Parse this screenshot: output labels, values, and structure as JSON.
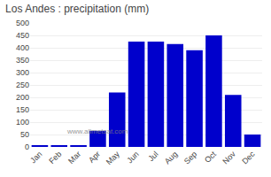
{
  "chart_data": {
    "type": "bar",
    "title": "Los Andes : precipitation (mm)",
    "categories": [
      "Jan",
      "Feb",
      "Mar",
      "Apr",
      "May",
      "Jun",
      "Jul",
      "Aug",
      "Sep",
      "Oct",
      "Nov",
      "Dec"
    ],
    "values": [
      5,
      5,
      5,
      65,
      220,
      425,
      425,
      415,
      390,
      450,
      210,
      50
    ],
    "color": "#0000CC",
    "ylim": [
      0,
      500
    ],
    "yticks": [
      0,
      50,
      100,
      150,
      200,
      250,
      300,
      350,
      400,
      450,
      500
    ],
    "grid": true,
    "annotations": [
      "www.allmetsat.com"
    ]
  }
}
